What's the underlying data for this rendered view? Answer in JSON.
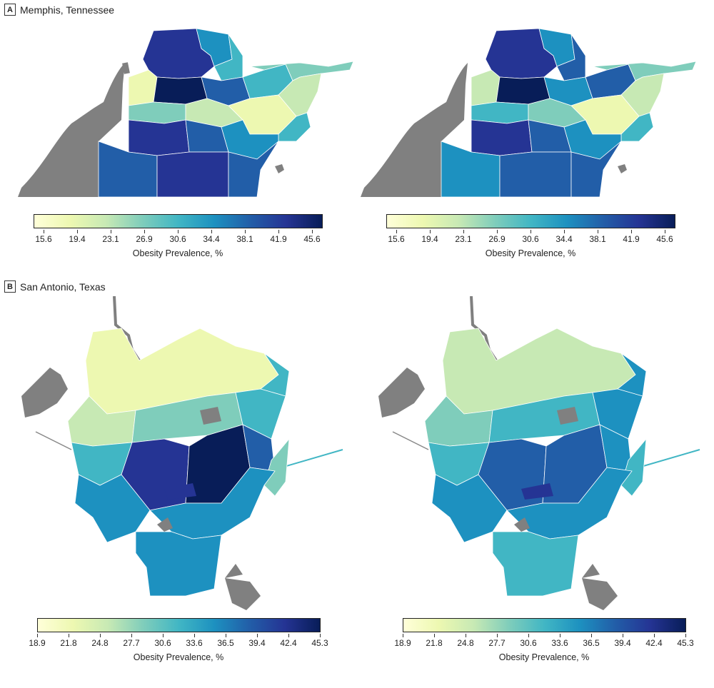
{
  "panels": [
    {
      "letter": "A",
      "title": "Memphis, Tennessee",
      "legend_title": "Obesity Prevalence, %",
      "ticks": [
        "15.6",
        "19.4",
        "23.1",
        "26.9",
        "30.6",
        "34.4",
        "38.1",
        "41.9",
        "45.6"
      ]
    },
    {
      "letter": "B",
      "title": "San Antonio, Texas",
      "legend_title": "Obesity Prevalence, %",
      "ticks": [
        "18.9",
        "21.8",
        "24.8",
        "27.7",
        "30.6",
        "33.6",
        "36.5",
        "39.4",
        "42.4",
        "45.3"
      ]
    }
  ],
  "colors": {
    "scale": [
      "#ffffd9",
      "#edf8b1",
      "#c7e9b4",
      "#7fcdbb",
      "#41b6c4",
      "#1d91c0",
      "#225ea8",
      "#253494",
      "#081d58"
    ],
    "no_data": "#808080",
    "tract_border": "#ffffff"
  }
}
